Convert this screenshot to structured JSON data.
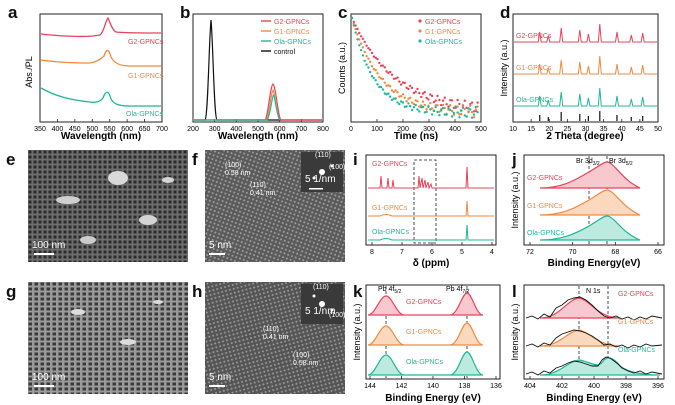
{
  "letters": {
    "a": "a",
    "b": "b",
    "c": "c",
    "d": "d",
    "e": "e",
    "f": "f",
    "g": "g",
    "h": "h",
    "i": "i",
    "j": "j",
    "k": "k",
    "l": "l"
  },
  "colors": {
    "g2": "#e8435a",
    "g1": "#f08a3e",
    "ola": "#1fb89a",
    "control": "#111111"
  },
  "panel_a": {
    "ylabel": "Abs./PL",
    "xlabel": "Wavelength (nm)",
    "ticks": [
      "350",
      "400",
      "450",
      "500",
      "550",
      "600",
      "650",
      "700"
    ],
    "labels": [
      "G2-GPNCs",
      "G1-GPNCs",
      "Ola-GPNCs"
    ]
  },
  "panel_b": {
    "xlabel": "Wavelength (nm)",
    "ticks": [
      "200",
      "300",
      "400",
      "500",
      "600",
      "700",
      "800"
    ],
    "legend": [
      "G2-GPNCs",
      "G1-GPNCs",
      "Ola-GPNCs",
      "control"
    ]
  },
  "panel_c": {
    "ylabel": "Counts (a.u.)",
    "xlabel": "Time (ns)",
    "ticks": [
      "0",
      "100",
      "200",
      "300",
      "400",
      "500"
    ],
    "legend": [
      "G2-GPNCs",
      "G1-GPNCs",
      "Ola-GPNCs"
    ]
  },
  "panel_d": {
    "ylabel": "Intensity (a.u.)",
    "xlabel": "2 Theta (degree)",
    "ticks": [
      "10",
      "15",
      "20",
      "25",
      "30",
      "35",
      "40",
      "45",
      "50"
    ],
    "labels": [
      "G2-GPNCs",
      "G1-GPNCs",
      "Ola-GPNCs"
    ]
  },
  "panel_e": {
    "scale": "100 nm"
  },
  "panel_f": {
    "scale": "5 nm",
    "fft_scale": "5 1/nm",
    "d1": "(100)\n0.58 nm",
    "d2": "(110)\n0.41 nm",
    "s1": "(110)",
    "s2": "(100)"
  },
  "panel_g": {
    "scale": "100 nm"
  },
  "panel_h": {
    "scale": "5 nm",
    "fft_scale": "5 1/nm",
    "d1": "(110)\n0.41 nm",
    "d2": "(100)\n0.58 nm",
    "s1": "(110)",
    "s2": "(100)"
  },
  "panel_i": {
    "xlabel": "δ (ppm)",
    "ticks": [
      "8",
      "7",
      "6",
      "5",
      "4"
    ],
    "labels": [
      "G2-GPNCs",
      "G1-GPNCs",
      "Ola-GPNCs"
    ]
  },
  "panel_j": {
    "ylabel": "Intensity (a.u.)",
    "xlabel": "Binding Energy(eV)",
    "ticks": [
      "72",
      "70",
      "68",
      "66"
    ],
    "peak1": "Br 3d",
    "peak1_sub": "3/2",
    "peak2": "Br 3d",
    "peak2_sub": "5/2",
    "labels": [
      "G2-GPNCs",
      "G1-GPNCs",
      "Ola-GPNCs"
    ]
  },
  "panel_k": {
    "ylabel": "Intensity (a.u.)",
    "xlabel": "Binding Energy (eV)",
    "ticks": [
      "144",
      "142",
      "140",
      "138",
      "136"
    ],
    "peak1": "Pb 4f",
    "peak1_sub": "5/2",
    "peak2": "Pb 4f",
    "peak2_sub": "7/2",
    "labels": [
      "G2-GPNCs",
      "G1-GPNCs",
      "Ola-GPNCs"
    ]
  },
  "panel_l": {
    "ylabel": "Intensity (a.u.)",
    "xlabel": "Binding Energy (eV)",
    "ticks": [
      "404",
      "402",
      "400",
      "398",
      "396"
    ],
    "peak": "N 1s",
    "labels": [
      "G2-GPNCs",
      "G1-GPNCs",
      "Ola-GPNCs"
    ]
  }
}
